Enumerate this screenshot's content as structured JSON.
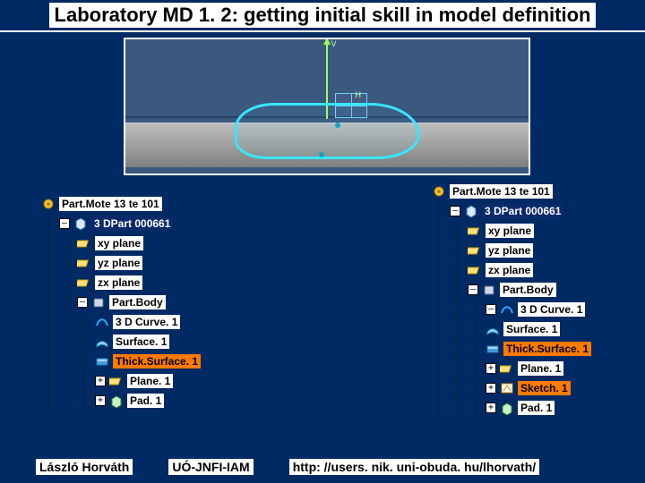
{
  "title": "Laboratory MD 1. 2: getting initial skill in model definition",
  "viewport": {
    "axis_v_label": "V",
    "axis_h_label": "H",
    "curve_color": "#38e6ff",
    "axis_color": "#9bff5a",
    "floor_color_top": "#bdbdbd",
    "floor_color_bottom": "#7e7e7e",
    "background": "#3b587f"
  },
  "left_tree": {
    "root": "Part.Mote 13 te 101",
    "part3d": "3 DPart 000661",
    "planes": [
      "xy plane",
      "yz plane",
      "zx plane"
    ],
    "body_label": "Part.Body",
    "body_children": [
      {
        "name": "3d-curve",
        "label": "3 D Curve. 1",
        "icon": "curve",
        "selected": false
      },
      {
        "name": "surface",
        "label": "Surface. 1",
        "icon": "surface",
        "selected": false
      },
      {
        "name": "thick-surface",
        "label": "Thick.Surface. 1",
        "icon": "thick",
        "selected": true
      },
      {
        "name": "plane1",
        "label": "Plane. 1",
        "icon": "plane",
        "selected": false,
        "expander": "+"
      },
      {
        "name": "pad1",
        "label": "Pad. 1",
        "icon": "pad",
        "selected": false,
        "expander": "+"
      }
    ]
  },
  "right_tree": {
    "root": "Part.Mote 13 te 101",
    "part3d": "3 DPart 000661",
    "planes": [
      "xy plane",
      "yz plane",
      "zx plane"
    ],
    "body_label": "Part.Body",
    "body_children": [
      {
        "name": "3d-curve",
        "label": "3 D Curve. 1",
        "icon": "curve",
        "selected": false,
        "expander": "–"
      },
      {
        "name": "surface",
        "label": "Surface. 1",
        "icon": "surface",
        "selected": false
      },
      {
        "name": "thick-surface",
        "label": "Thick.Surface. 1",
        "icon": "thick",
        "selected": true
      },
      {
        "name": "plane1",
        "label": "Plane. 1",
        "icon": "plane",
        "selected": false,
        "expander": "+"
      },
      {
        "name": "sketch1",
        "label": "Sketch. 1",
        "icon": "sketch",
        "selected": true,
        "expander": "+"
      },
      {
        "name": "pad1",
        "label": "Pad. 1",
        "icon": "pad",
        "selected": false,
        "expander": "+"
      }
    ]
  },
  "footer": {
    "author": "László Horváth",
    "org": "UÓ-JNFI-IAM",
    "url": "http: //users. nik. uni-obuda. hu/lhorvath/"
  },
  "colors": {
    "slide_bg": "#002a63",
    "highlight_orange": "#ff7a00",
    "highlight_blue": "#0a2a6b"
  }
}
